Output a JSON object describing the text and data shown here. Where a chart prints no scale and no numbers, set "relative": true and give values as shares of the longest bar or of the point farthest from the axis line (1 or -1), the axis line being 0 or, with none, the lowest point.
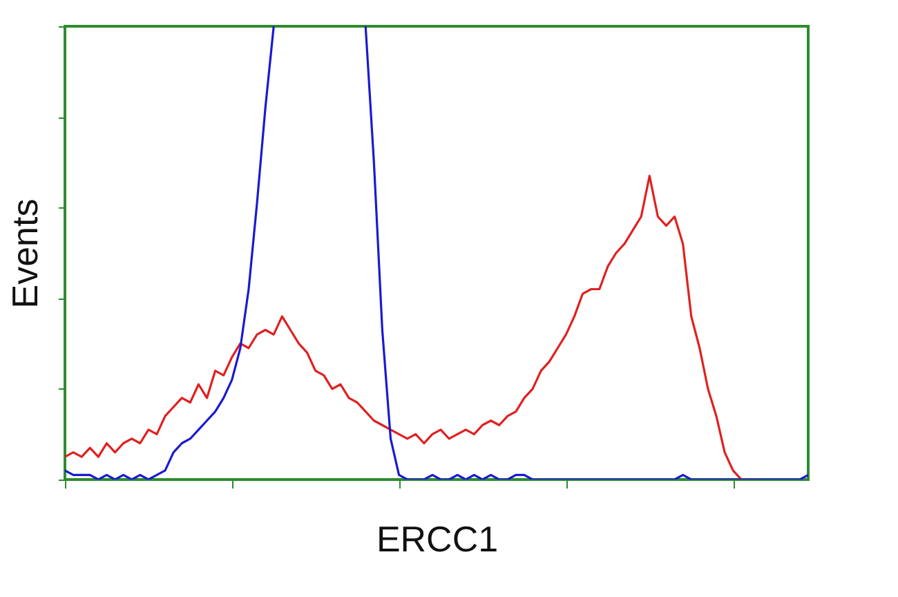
{
  "chart_data": {
    "type": "line",
    "relative": true,
    "xlabel": "ERCC1",
    "ylabel": "Events",
    "tick_labels": false,
    "grid": false,
    "legend": false,
    "marker": "none",
    "line_style": "solid",
    "categories": [
      null,
      null,
      null,
      null,
      null,
      null,
      null,
      null,
      null,
      null,
      null,
      null,
      null,
      null,
      null,
      null,
      null,
      null,
      null,
      null,
      null,
      null,
      null,
      null,
      null,
      null,
      null,
      null,
      null,
      null,
      null,
      null,
      null,
      null,
      null,
      null,
      null,
      null,
      null,
      null,
      null,
      null,
      null,
      null,
      null,
      null,
      null,
      null,
      null,
      null,
      null,
      null,
      null,
      null,
      null,
      null,
      null,
      null,
      null,
      null,
      null,
      null,
      null,
      null,
      null,
      null,
      null,
      null,
      null,
      null,
      null,
      null,
      null,
      null,
      null,
      null,
      null,
      null,
      null,
      null,
      null,
      null,
      null,
      null,
      null,
      null,
      null,
      null,
      null,
      null
    ],
    "series": [
      {
        "color": "#e02020",
        "values": [
          0.05,
          0.06,
          0.05,
          0.07,
          0.05,
          0.08,
          0.06,
          0.08,
          0.09,
          0.08,
          0.11,
          0.1,
          0.14,
          0.16,
          0.18,
          0.17,
          0.21,
          0.18,
          0.24,
          0.23,
          0.27,
          0.3,
          0.29,
          0.32,
          0.33,
          0.32,
          0.36,
          0.33,
          0.3,
          0.28,
          0.24,
          0.23,
          0.2,
          0.21,
          0.18,
          0.17,
          0.15,
          0.13,
          0.12,
          0.11,
          0.1,
          0.09,
          0.1,
          0.08,
          0.1,
          0.11,
          0.09,
          0.1,
          0.11,
          0.1,
          0.12,
          0.13,
          0.12,
          0.14,
          0.15,
          0.18,
          0.2,
          0.24,
          0.26,
          0.29,
          0.32,
          0.36,
          0.41,
          0.42,
          0.42,
          0.47,
          0.5,
          0.52,
          0.55,
          0.58,
          0.67,
          0.58,
          0.56,
          0.58,
          0.52,
          0.36,
          0.29,
          0.2,
          0.14,
          0.06,
          0.02,
          0,
          0,
          0,
          null,
          null,
          null,
          null,
          null,
          null
        ]
      },
      {
        "color": "#1a1ad0",
        "values": [
          0.02,
          0.01,
          0.01,
          0.01,
          0,
          0.01,
          0,
          0.01,
          0,
          0.01,
          0,
          0.01,
          0.02,
          0.06,
          0.08,
          0.09,
          0.11,
          0.13,
          0.15,
          0.18,
          0.22,
          0.29,
          0.42,
          0.61,
          0.82,
          1,
          null,
          null,
          null,
          null,
          null,
          null,
          null,
          null,
          null,
          null,
          1,
          0.7,
          0.33,
          0.09,
          0.01,
          0,
          0,
          0,
          0.01,
          0,
          0,
          0.01,
          0,
          0.01,
          0,
          0.01,
          0,
          0,
          0.01,
          0.01,
          0,
          0,
          0,
          0,
          0,
          0,
          0,
          0,
          0,
          0,
          0,
          0,
          0,
          0,
          0,
          0,
          0,
          0,
          0.01,
          0,
          0,
          0,
          0,
          0,
          0,
          0,
          0,
          0,
          0,
          0,
          0,
          0,
          0,
          0.01
        ]
      }
    ]
  }
}
